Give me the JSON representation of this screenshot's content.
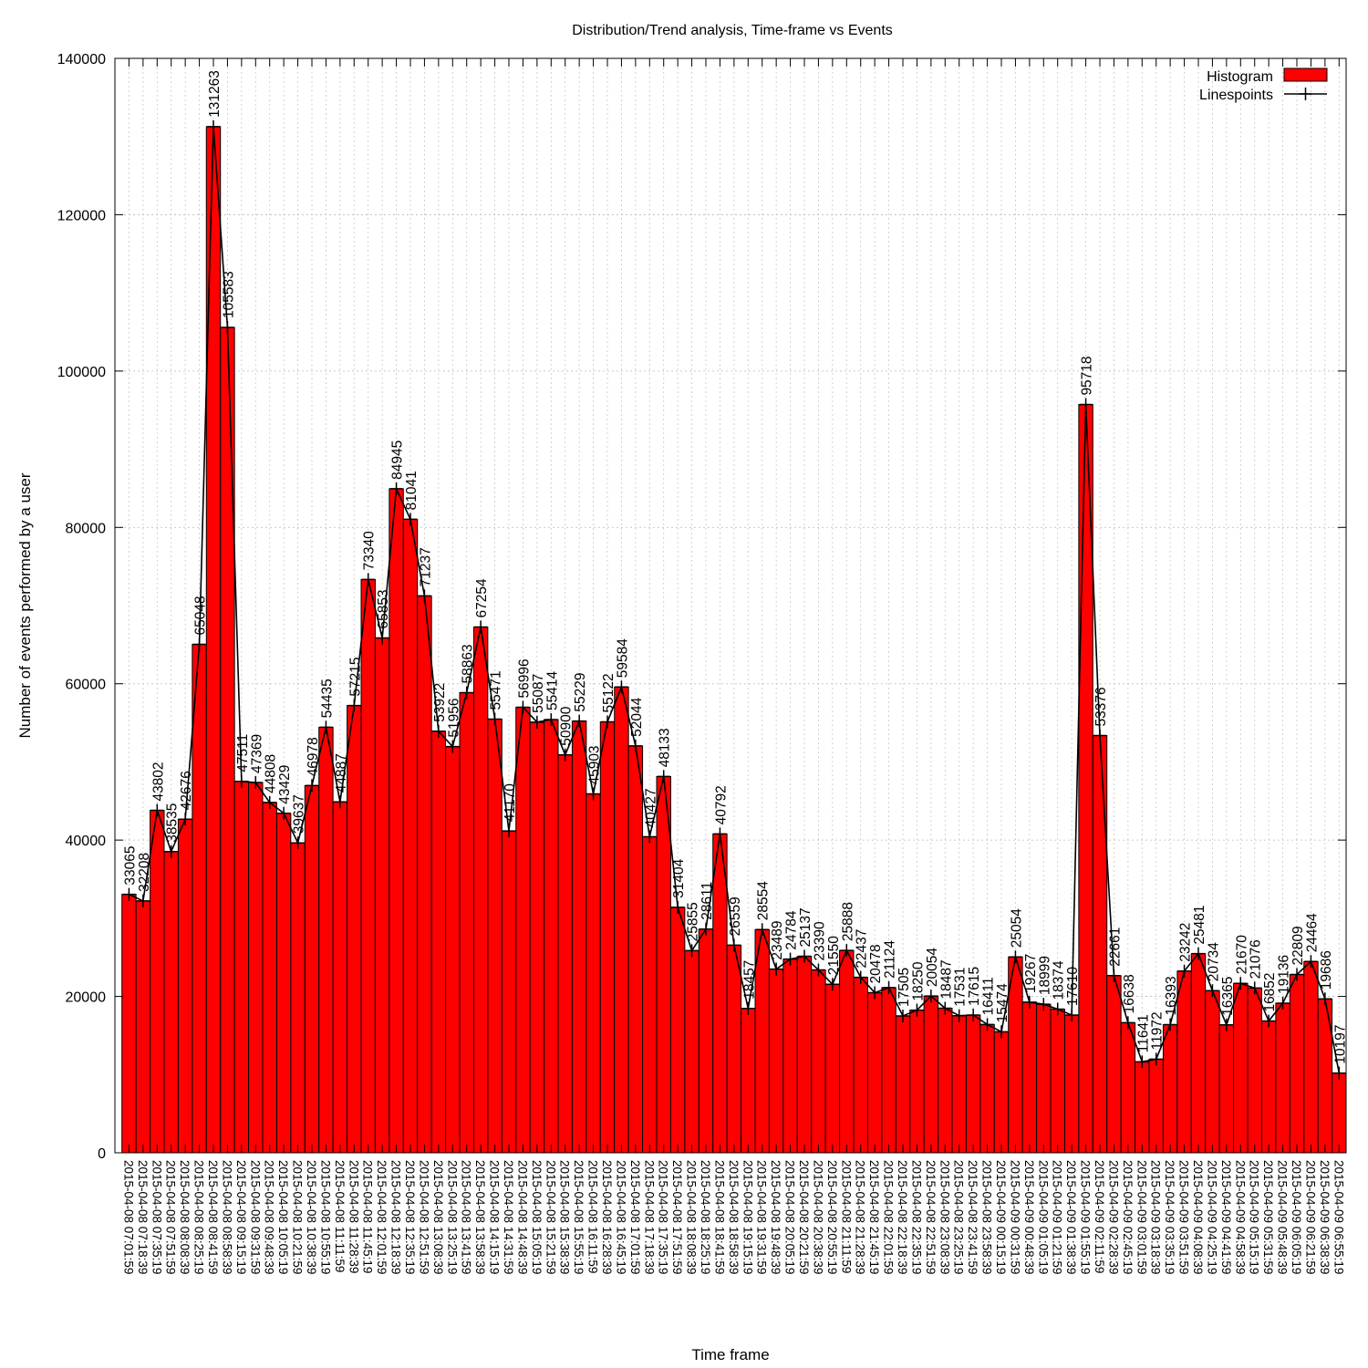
{
  "chart_data": {
    "type": "bar",
    "title": "Distribution/Trend analysis, Time-frame vs Events",
    "xlabel": "Time frame",
    "ylabel": "Number of events performed by a user",
    "ylim": [
      0,
      140000
    ],
    "yticks": [
      0,
      20000,
      40000,
      60000,
      80000,
      100000,
      120000,
      140000
    ],
    "grid": true,
    "legend_position": "top-right",
    "colors": {
      "histogram": "#ff0000",
      "line": "#000000"
    },
    "categories": [
      "2015-04-08 07:01:59",
      "2015-04-08 07:18:39",
      "2015-04-08 07:35:19",
      "2015-04-08 07:51:59",
      "2015-04-08 08:08:39",
      "2015-04-08 08:25:19",
      "2015-04-08 08:41:59",
      "2015-04-08 08:58:39",
      "2015-04-08 09:15:19",
      "2015-04-08 09:31:59",
      "2015-04-08 09:48:39",
      "2015-04-08 10:05:19",
      "2015-04-08 10:21:59",
      "2015-04-08 10:38:39",
      "2015-04-08 10:55:19",
      "2015-04-08 11:11:59",
      "2015-04-08 11:28:39",
      "2015-04-08 11:45:19",
      "2015-04-08 12:01:59",
      "2015-04-08 12:18:39",
      "2015-04-08 12:35:19",
      "2015-04-08 12:51:59",
      "2015-04-08 13:08:39",
      "2015-04-08 13:25:19",
      "2015-04-08 13:41:59",
      "2015-04-08 13:58:39",
      "2015-04-08 14:15:19",
      "2015-04-08 14:31:59",
      "2015-04-08 14:48:39",
      "2015-04-08 15:05:19",
      "2015-04-08 15:21:59",
      "2015-04-08 15:38:39",
      "2015-04-08 15:55:19",
      "2015-04-08 16:11:59",
      "2015-04-08 16:28:39",
      "2015-04-08 16:45:19",
      "2015-04-08 17:01:59",
      "2015-04-08 17:18:39",
      "2015-04-08 17:35:19",
      "2015-04-08 17:51:59",
      "2015-04-08 18:08:39",
      "2015-04-08 18:25:19",
      "2015-04-08 18:41:59",
      "2015-04-08 18:58:39",
      "2015-04-08 19:15:19",
      "2015-04-08 19:31:59",
      "2015-04-08 19:48:39",
      "2015-04-08 20:05:19",
      "2015-04-08 20:21:59",
      "2015-04-08 20:38:39",
      "2015-04-08 20:55:19",
      "2015-04-08 21:11:59",
      "2015-04-08 21:28:39",
      "2015-04-08 21:45:19",
      "2015-04-08 22:01:59",
      "2015-04-08 22:18:39",
      "2015-04-08 22:35:19",
      "2015-04-08 22:51:59",
      "2015-04-08 23:08:39",
      "2015-04-08 23:25:19",
      "2015-04-08 23:41:59",
      "2015-04-08 23:58:39",
      "2015-04-09 00:15:19",
      "2015-04-09 00:31:59",
      "2015-04-09 00:48:39",
      "2015-04-09 01:05:19",
      "2015-04-09 01:21:59",
      "2015-04-09 01:38:39",
      "2015-04-09 01:55:19",
      "2015-04-09 02:11:59",
      "2015-04-09 02:28:39",
      "2015-04-09 02:45:19",
      "2015-04-09 03:01:59",
      "2015-04-09 03:18:39",
      "2015-04-09 03:35:19",
      "2015-04-09 03:51:59",
      "2015-04-09 04:08:39",
      "2015-04-09 04:25:19",
      "2015-04-09 04:41:59",
      "2015-04-09 04:58:39",
      "2015-04-09 05:15:19",
      "2015-04-09 05:31:59",
      "2015-04-09 05:48:39",
      "2015-04-09 06:05:19",
      "2015-04-09 06:21:59",
      "2015-04-09 06:38:39",
      "2015-04-09 06:55:19"
    ],
    "series": [
      {
        "name": "Histogram",
        "type": "bar",
        "values": [
          33065,
          32208,
          43802,
          38535,
          42676,
          65048,
          131263,
          105583,
          47511,
          47369,
          44808,
          43429,
          39637,
          46978,
          54435,
          44887,
          57215,
          73340,
          65853,
          84945,
          81041,
          71237,
          53922,
          51956,
          58863,
          67254,
          55471,
          41170,
          56996,
          55087,
          55414,
          50900,
          55229,
          45903,
          55122,
          59584,
          52044,
          40427,
          48133,
          31404,
          25855,
          28611,
          40792,
          26559,
          18457,
          28554,
          23489,
          24784,
          25137,
          23390,
          21550,
          25888,
          22437,
          20478,
          21124,
          17505,
          18250,
          20054,
          18487,
          17531,
          17615,
          16411,
          15474,
          25054,
          19267,
          18999,
          18374,
          17610,
          95718,
          53376,
          22661,
          16638,
          11641,
          11972,
          16393,
          23242,
          25481,
          20734,
          16365,
          21670,
          21076,
          16852,
          19136,
          22809,
          24464,
          19686,
          10197
        ]
      },
      {
        "name": "Linespoints",
        "type": "line",
        "values": [
          33065,
          32208,
          43802,
          38535,
          42676,
          65048,
          131263,
          105583,
          47511,
          47369,
          44808,
          43429,
          39637,
          46978,
          54435,
          44887,
          57215,
          73340,
          65853,
          84945,
          81041,
          71237,
          53922,
          51956,
          58863,
          67254,
          55471,
          41170,
          56996,
          55087,
          55414,
          50900,
          55229,
          45903,
          55122,
          59584,
          52044,
          40427,
          48133,
          31404,
          25855,
          28611,
          40792,
          26559,
          18457,
          28554,
          23489,
          24784,
          25137,
          23390,
          21550,
          25888,
          22437,
          20478,
          21124,
          17505,
          18250,
          20054,
          18487,
          17531,
          17615,
          16411,
          15474,
          25054,
          19267,
          18999,
          18374,
          17610,
          95718,
          53376,
          22661,
          16638,
          11641,
          11972,
          16393,
          23242,
          25481,
          20734,
          16365,
          21670,
          21076,
          16852,
          19136,
          22809,
          24464,
          19686,
          10197
        ]
      }
    ]
  }
}
